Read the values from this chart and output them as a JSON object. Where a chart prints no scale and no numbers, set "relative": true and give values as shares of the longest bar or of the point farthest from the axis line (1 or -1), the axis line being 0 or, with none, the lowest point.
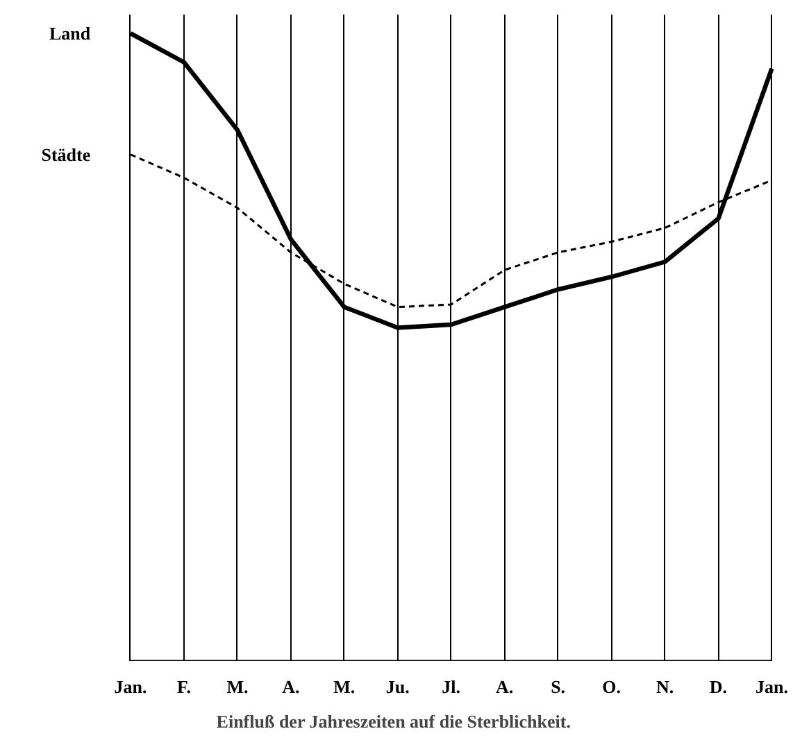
{
  "chart_data": {
    "type": "line",
    "relative": true,
    "title": "Einfluß der Jahreszeiten auf die Sterblichkeit.",
    "categories": [
      "Jan.",
      "F.",
      "M.",
      "A.",
      "M.",
      "Ju.",
      "Jl.",
      "A.",
      "S.",
      "O.",
      "N.",
      "D.",
      "Jan."
    ],
    "series": [
      {
        "name": "Land",
        "color": "#000000",
        "line_style": "solid",
        "values": [
          1.0,
          0.954,
          0.846,
          0.672,
          0.564,
          0.531,
          0.536,
          0.564,
          0.592,
          0.612,
          0.636,
          0.705,
          0.944
        ]
      },
      {
        "name": "Städte",
        "color": "#000000",
        "line_style": "dashed",
        "values": [
          0.807,
          0.77,
          0.722,
          0.651,
          0.601,
          0.564,
          0.568,
          0.623,
          0.651,
          0.668,
          0.69,
          0.731,
          0.766
        ]
      }
    ],
    "grid": "x",
    "marker": "none"
  }
}
